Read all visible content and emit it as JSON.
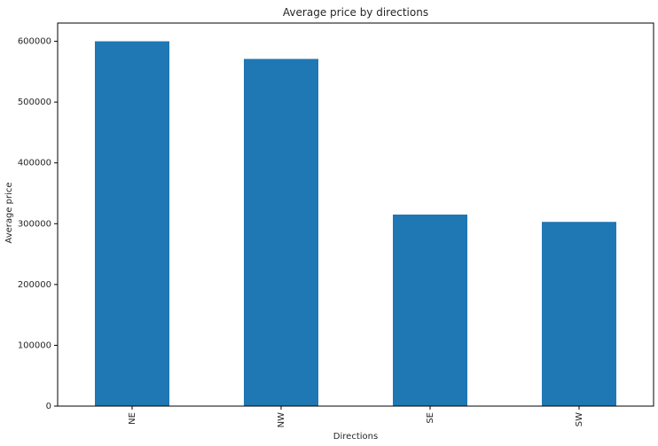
{
  "chart_data": {
    "type": "bar",
    "title": "Average price by directions",
    "xlabel": "Directions",
    "ylabel": "Average price",
    "categories": [
      "NE",
      "NW",
      "SE",
      "SW"
    ],
    "values": [
      600000,
      571000,
      315000,
      303000
    ],
    "ylim": [
      0,
      630000
    ],
    "yticks": [
      0,
      100000,
      200000,
      300000,
      400000,
      500000,
      600000
    ],
    "ytick_labels": [
      "0",
      "100000",
      "200000",
      "300000",
      "400000",
      "500000",
      "600000"
    ],
    "bar_color": "#1f77b4",
    "grid": false
  }
}
